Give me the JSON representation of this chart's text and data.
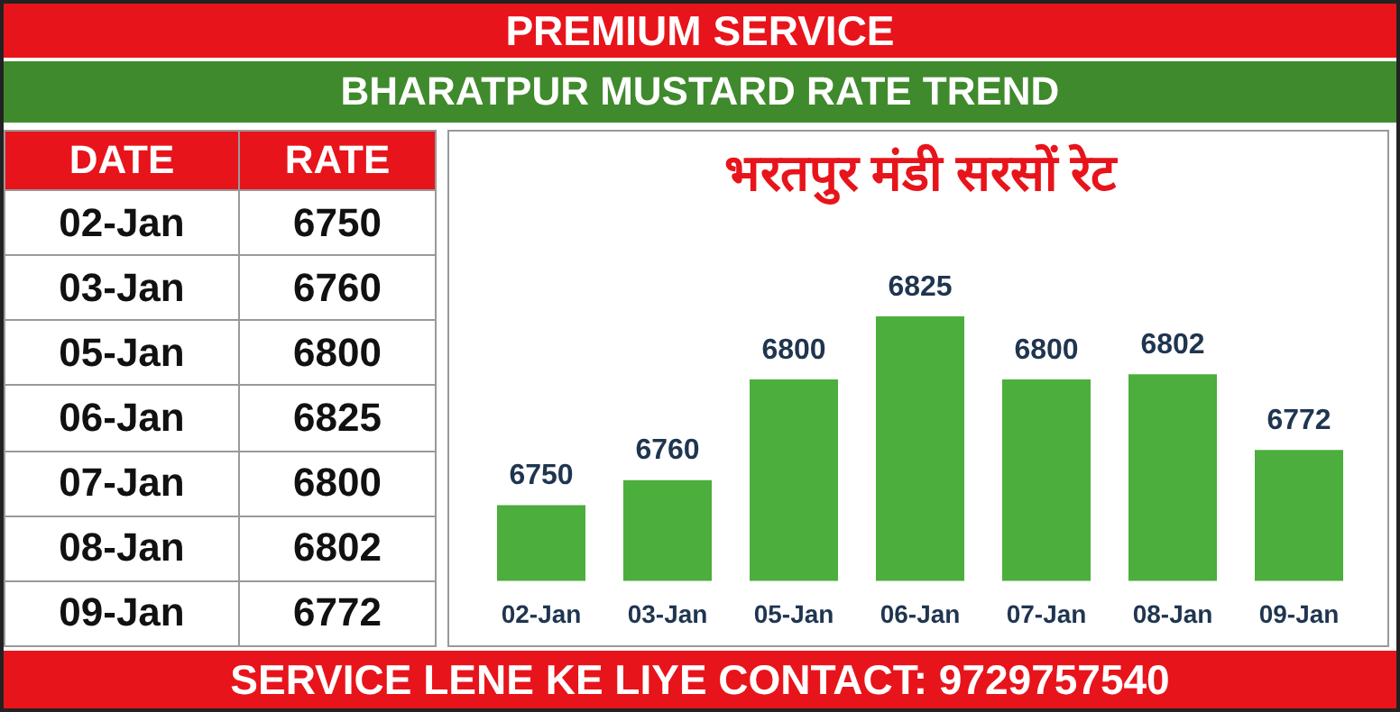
{
  "chart_data": [
    {
      "type": "other",
      "annotations": [
        "DATE",
        "RATE"
      ],
      "categories": [
        "02-Jan",
        "03-Jan",
        "05-Jan",
        "06-Jan",
        "07-Jan",
        "08-Jan",
        "09-Jan"
      ],
      "values": [
        6750,
        6760,
        6800,
        6825,
        6800,
        6802,
        6772
      ],
      "data_labels": true
    },
    {
      "type": "bar",
      "title": "भरतपुर मंडी सरसों रेट",
      "subtitle": "BHARATPUR MUSTARD RATE TREND",
      "annotations": [
        "PREMIUM SERVICE",
        "SERVICE LENE KE LIYE CONTACT: 9729757540"
      ],
      "categories": [
        "02-Jan",
        "03-Jan",
        "05-Jan",
        "06-Jan",
        "07-Jan",
        "08-Jan",
        "09-Jan"
      ],
      "values": [
        6750,
        6760,
        6800,
        6825,
        6800,
        6802,
        6772
      ],
      "color": "#4cae3c",
      "tick_labels": "x",
      "data_labels": true,
      "grid": false,
      "legend": false
    }
  ]
}
